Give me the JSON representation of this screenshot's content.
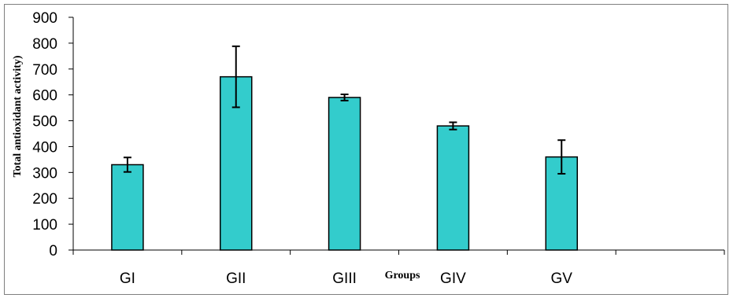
{
  "chart_data": {
    "type": "bar",
    "title": "",
    "xlabel": "Groups",
    "ylabel": "Total antioxidant activity)",
    "categories": [
      "GI",
      "GII",
      "GIII",
      "GIV",
      "GV",
      ""
    ],
    "values": [
      330,
      670,
      590,
      480,
      360,
      null
    ],
    "errors": [
      28,
      118,
      12,
      14,
      65,
      null
    ],
    "ylim": [
      0,
      900
    ],
    "yticks": [
      0,
      100,
      200,
      300,
      400,
      500,
      600,
      700,
      800,
      900
    ],
    "grid": false,
    "legend": "none",
    "bar_color": "#33cccc",
    "bar_edge_color": "#000000"
  }
}
